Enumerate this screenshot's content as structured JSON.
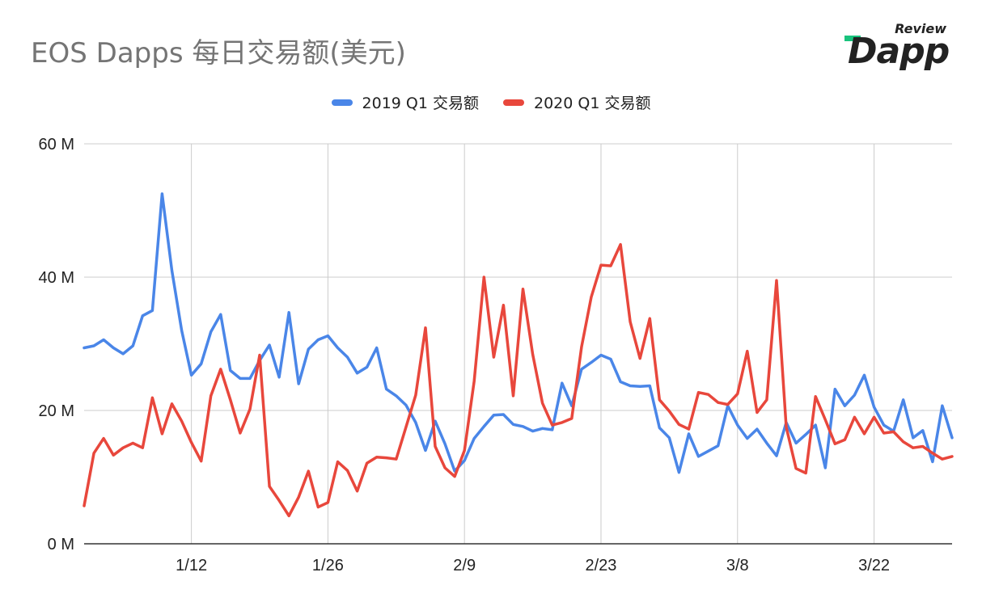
{
  "title": "EOS Dapps 每日交易额(美元)",
  "logo": {
    "small": "Review",
    "large": "Dapp",
    "bar_color": "#19c37d"
  },
  "chart_data": {
    "type": "line",
    "ylim": [
      0,
      60
    ],
    "yticks": [
      0,
      20,
      40,
      60
    ],
    "ytick_labels": [
      "0 M",
      "20 M",
      "40 M",
      "60 M"
    ],
    "x_count": 90,
    "xticks": [
      {
        "index": 11,
        "label": "1/12"
      },
      {
        "index": 25,
        "label": "1/26"
      },
      {
        "index": 39,
        "label": "2/9"
      },
      {
        "index": 53,
        "label": "2/23"
      },
      {
        "index": 67,
        "label": "3/8"
      },
      {
        "index": 81,
        "label": "3/22"
      }
    ],
    "grid": true,
    "legend_position": "top",
    "series": [
      {
        "name": "2019 Q1 交易额",
        "color": "#4a86e8",
        "values": [
          29.4,
          29.7,
          30.6,
          29.4,
          28.5,
          29.7,
          34.2,
          35.0,
          52.5,
          41.0,
          32.0,
          25.3,
          27.0,
          31.8,
          34.4,
          26.0,
          24.8,
          24.8,
          27.5,
          29.8,
          25.0,
          34.7,
          24.0,
          29.2,
          30.6,
          31.2,
          29.4,
          28.0,
          25.6,
          26.5,
          29.4,
          23.2,
          22.2,
          20.8,
          18.2,
          14.0,
          18.4,
          15.0,
          10.9,
          12.5,
          15.8,
          17.6,
          19.3,
          19.4,
          17.9,
          17.6,
          16.9,
          17.3,
          17.1,
          24.1,
          20.7,
          26.2,
          27.2,
          28.3,
          27.7,
          24.3,
          23.7,
          23.6,
          23.7,
          17.4,
          15.9,
          10.7,
          16.5,
          13.1,
          13.9,
          14.7,
          20.7,
          17.8,
          15.8,
          17.2,
          15.1,
          13.2,
          18.2,
          15.1,
          16.4,
          17.8,
          11.4,
          23.2,
          20.7,
          22.3,
          25.3,
          20.5,
          17.8,
          16.9,
          21.6,
          15.9,
          17.0,
          12.3,
          20.7,
          15.9
        ]
      },
      {
        "name": "2020 Q1 交易额",
        "color": "#e8473c",
        "values": [
          5.7,
          13.6,
          15.8,
          13.3,
          14.4,
          15.1,
          14.4,
          21.9,
          16.5,
          21.0,
          18.4,
          15.2,
          12.4,
          22.2,
          26.2,
          21.6,
          16.6,
          20.2,
          28.3,
          8.6,
          6.5,
          4.2,
          7.0,
          10.9,
          5.5,
          6.2,
          12.3,
          11.0,
          7.9,
          12.1,
          13.0,
          12.9,
          12.7,
          17.5,
          22.3,
          32.4,
          14.6,
          11.4,
          10.1,
          14.0,
          24.4,
          40.0,
          28.0,
          35.8,
          22.2,
          38.2,
          28.4,
          21.1,
          17.8,
          18.2,
          18.8,
          29.5,
          37.0,
          41.8,
          41.7,
          44.9,
          33.3,
          27.8,
          33.8,
          21.6,
          19.9,
          17.9,
          17.2,
          22.7,
          22.4,
          21.2,
          20.9,
          22.5,
          28.9,
          19.7,
          21.6,
          39.5,
          17.5,
          11.3,
          10.6,
          22.1,
          18.6,
          15.0,
          15.6,
          19.0,
          16.5,
          19.0,
          16.6,
          16.8,
          15.3,
          14.4,
          14.6,
          13.6,
          12.7,
          13.1
        ]
      }
    ]
  }
}
